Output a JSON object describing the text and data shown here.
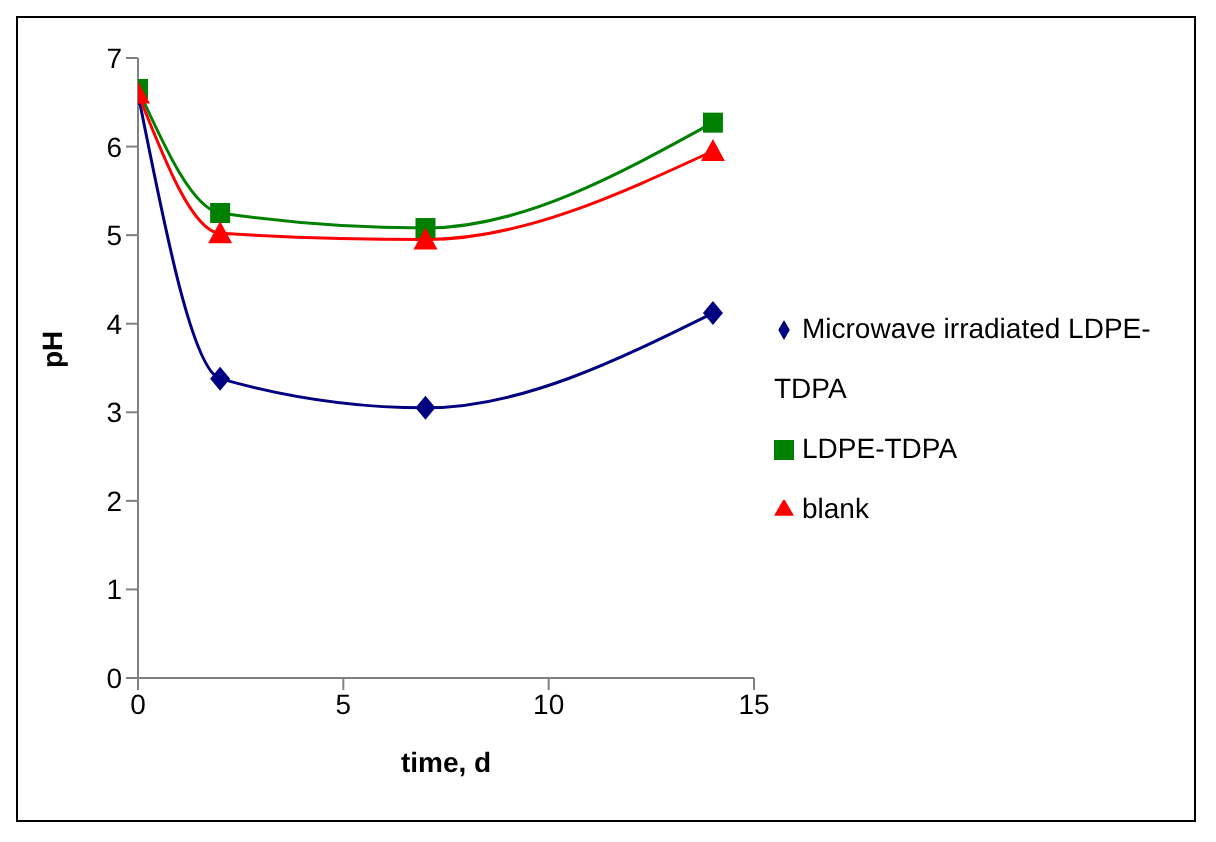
{
  "chart_data": {
    "type": "line",
    "xlabel": "time, d",
    "ylabel": "pH",
    "x": [
      0,
      2,
      7,
      14
    ],
    "series": [
      {
        "name": "Microwave irradiated LDPE-TDPA",
        "color": "#000080",
        "marker": "diamond",
        "values": [
          6.6,
          3.38,
          3.05,
          4.12
        ]
      },
      {
        "name": "LDPE-TDPA",
        "color": "#008000",
        "marker": "square",
        "values": [
          6.65,
          5.25,
          5.08,
          6.27
        ]
      },
      {
        "name": "blank",
        "color": "#ff0000",
        "marker": "triangle",
        "values": [
          6.6,
          5.02,
          4.95,
          5.95
        ]
      }
    ],
    "xlim": [
      0,
      15
    ],
    "xticks": [
      0,
      5,
      10,
      15
    ],
    "ylim": [
      0,
      7
    ],
    "yticks": [
      0,
      1,
      2,
      3,
      4,
      5,
      6,
      7
    ],
    "grid": false,
    "legend": "right"
  }
}
